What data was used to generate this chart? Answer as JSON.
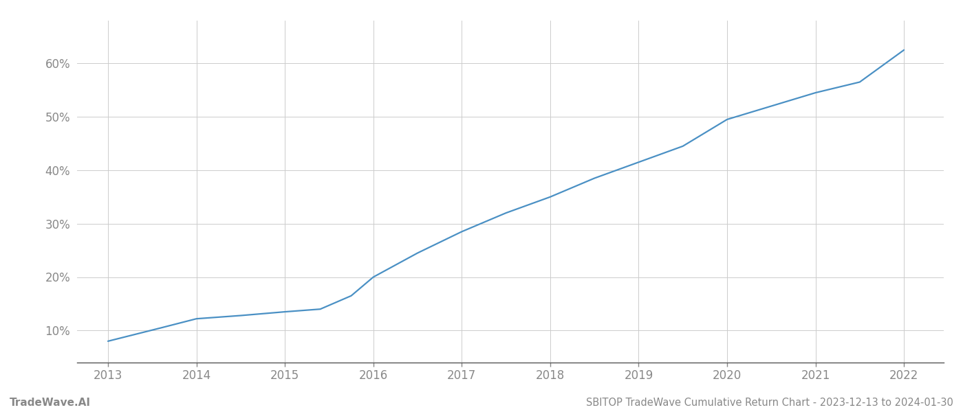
{
  "title": "SBITOP TradeWave Cumulative Return Chart - 2023-12-13 to 2024-01-30",
  "watermark": "TradeWave.AI",
  "line_color": "#4a90c4",
  "background_color": "#ffffff",
  "grid_color": "#cccccc",
  "x_years": [
    2013,
    2014,
    2015,
    2016,
    2017,
    2018,
    2019,
    2020,
    2021,
    2022
  ],
  "data_points": {
    "2013.0": 8.0,
    "2013.6": 10.5,
    "2014.0": 12.2,
    "2014.5": 12.8,
    "2015.0": 13.5,
    "2015.4": 14.0,
    "2015.75": 16.5,
    "2016.0": 20.0,
    "2016.5": 24.5,
    "2017.0": 28.5,
    "2017.5": 32.0,
    "2018.0": 35.0,
    "2018.5": 38.5,
    "2019.0": 41.5,
    "2019.5": 44.5,
    "2020.0": 49.5,
    "2020.5": 52.0,
    "2021.0": 54.5,
    "2021.5": 56.5,
    "2022.0": 62.5
  },
  "ylim": [
    4,
    68
  ],
  "xlim": [
    2012.65,
    2022.45
  ],
  "yticks": [
    10,
    20,
    30,
    40,
    50,
    60
  ],
  "tick_label_color": "#888888",
  "axis_color": "#555555",
  "title_fontsize": 10.5,
  "watermark_fontsize": 11,
  "tick_fontsize": 12
}
